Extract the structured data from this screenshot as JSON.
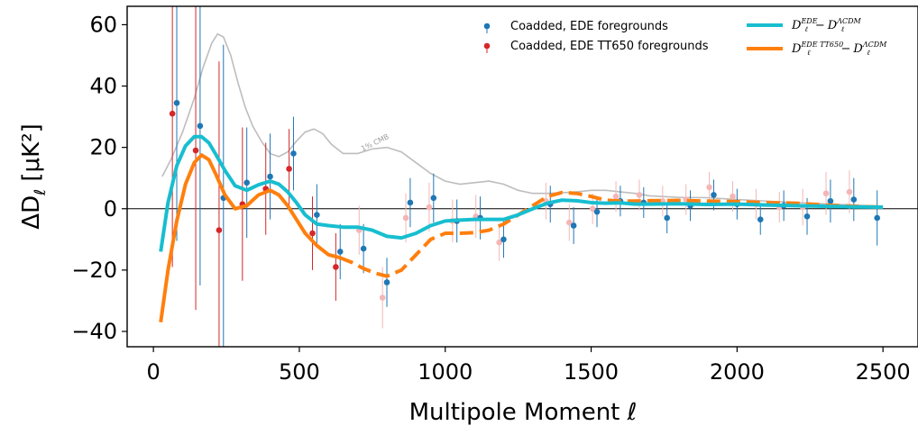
{
  "chart_data": {
    "type": "scatter",
    "xlabel": "Multipole Moment ℓ",
    "ylabel": "ΔD",
    "ylabel_sub": "ℓ",
    "ylabel_unit": " [μK²]",
    "xlim": [
      -90,
      2620
    ],
    "ylim": [
      -45,
      66
    ],
    "x_ticks": [
      0,
      500,
      1000,
      1500,
      2000,
      2500
    ],
    "y_ticks": [
      -40,
      -20,
      0,
      20,
      40,
      60
    ],
    "y_tick_labels": [
      "−40",
      "−20",
      "0",
      "20",
      "40",
      "60"
    ],
    "zero_line": true,
    "grid": false,
    "legend_position": "top-right",
    "colors": {
      "ede": "#1f77b4",
      "tt650": "#d62728",
      "tt650_faded": "#f4b6b6",
      "model_ede": "#17becf",
      "model_tt650": "#ff7f0e",
      "cmb": "#bdbdbd"
    },
    "series": [
      {
        "name": "Coadded, EDE foregrounds",
        "kind": "errorbar",
        "points": [
          {
            "x": 80,
            "y": 34.5,
            "err": 45
          },
          {
            "x": 160,
            "y": 27,
            "err": 52
          },
          {
            "x": 240,
            "y": 3.5,
            "err": 50
          },
          {
            "x": 320,
            "y": 8.5,
            "err": 18
          },
          {
            "x": 400,
            "y": 10.5,
            "err": 14
          },
          {
            "x": 480,
            "y": 18,
            "err": 12
          },
          {
            "x": 560,
            "y": -2,
            "err": 10
          },
          {
            "x": 640,
            "y": -14,
            "err": 9
          },
          {
            "x": 720,
            "y": -13,
            "err": 8
          },
          {
            "x": 800,
            "y": -24,
            "err": 8
          },
          {
            "x": 880,
            "y": 2,
            "err": 8
          },
          {
            "x": 960,
            "y": 3.5,
            "err": 8
          },
          {
            "x": 1040,
            "y": -4,
            "err": 7
          },
          {
            "x": 1120,
            "y": -3,
            "err": 7
          },
          {
            "x": 1200,
            "y": -10,
            "err": 6
          },
          {
            "x": 1360,
            "y": 1.5,
            "err": 6
          },
          {
            "x": 1440,
            "y": -5.5,
            "err": 6
          },
          {
            "x": 1520,
            "y": -1,
            "err": 5
          },
          {
            "x": 1600,
            "y": 2.5,
            "err": 5
          },
          {
            "x": 1680,
            "y": 2,
            "err": 5
          },
          {
            "x": 1760,
            "y": -3,
            "err": 5
          },
          {
            "x": 1840,
            "y": 1,
            "err": 5
          },
          {
            "x": 1920,
            "y": 4.5,
            "err": 5
          },
          {
            "x": 2000,
            "y": 1.5,
            "err": 5
          },
          {
            "x": 2080,
            "y": -3.5,
            "err": 5
          },
          {
            "x": 2160,
            "y": 1,
            "err": 5
          },
          {
            "x": 2240,
            "y": -2.5,
            "err": 6
          },
          {
            "x": 2320,
            "y": 2.5,
            "err": 7
          },
          {
            "x": 2400,
            "y": 3,
            "err": 7
          },
          {
            "x": 2480,
            "y": -3,
            "err": 9
          }
        ]
      },
      {
        "name": "Coadded, EDE TT650 foregrounds",
        "kind": "errorbar",
        "points": [
          {
            "x": 65,
            "y": 31,
            "err": 50
          },
          {
            "x": 145,
            "y": 19,
            "err": 52
          },
          {
            "x": 225,
            "y": -7,
            "err": 55
          },
          {
            "x": 305,
            "y": 1.5,
            "err": 25
          },
          {
            "x": 385,
            "y": 6.5,
            "err": 15
          },
          {
            "x": 465,
            "y": 13,
            "err": 13
          },
          {
            "x": 545,
            "y": -8,
            "err": 12
          },
          {
            "x": 625,
            "y": -19,
            "err": 11
          }
        ],
        "faded_points": [
          {
            "x": 705,
            "y": -7,
            "err": 8
          },
          {
            "x": 785,
            "y": -29,
            "err": 10
          },
          {
            "x": 865,
            "y": -3,
            "err": 8
          },
          {
            "x": 945,
            "y": 0.5,
            "err": 8
          },
          {
            "x": 1025,
            "y": -4,
            "err": 7
          },
          {
            "x": 1105,
            "y": -2.5,
            "err": 7
          },
          {
            "x": 1185,
            "y": -11,
            "err": 6
          },
          {
            "x": 1345,
            "y": 2.5,
            "err": 6
          },
          {
            "x": 1425,
            "y": -4.5,
            "err": 6
          },
          {
            "x": 1505,
            "y": 0,
            "err": 5
          },
          {
            "x": 1585,
            "y": 4,
            "err": 5
          },
          {
            "x": 1665,
            "y": 4.5,
            "err": 5
          },
          {
            "x": 1745,
            "y": 2.5,
            "err": 5
          },
          {
            "x": 1825,
            "y": 3,
            "err": 5
          },
          {
            "x": 1905,
            "y": 7,
            "err": 5
          },
          {
            "x": 1985,
            "y": 4,
            "err": 5
          },
          {
            "x": 2065,
            "y": 1.5,
            "err": 5
          },
          {
            "x": 2145,
            "y": 0.5,
            "err": 5
          },
          {
            "x": 2225,
            "y": 0.5,
            "err": 6
          },
          {
            "x": 2305,
            "y": 5,
            "err": 7
          },
          {
            "x": 2385,
            "y": 5.5,
            "err": 7
          }
        ]
      },
      {
        "name_parts": {
          "d1": "D",
          "sub1": "ℓ",
          "sup1": "EDE",
          "minus": "−",
          "d2": "D",
          "sub2": "ℓ",
          "sup2": "ΛCDM"
        },
        "kind": "line",
        "x": [
          25,
          50,
          80,
          110,
          140,
          165,
          190,
          215,
          245,
          280,
          320,
          360,
          400,
          430,
          460,
          490,
          520,
          560,
          600,
          650,
          700,
          750,
          800,
          850,
          900,
          950,
          1000,
          1050,
          1100,
          1150,
          1200,
          1250,
          1300,
          1350,
          1400,
          1450,
          1500,
          1550,
          1600,
          1650,
          1700,
          1800,
          1900,
          2000,
          2100,
          2200,
          2300,
          2400,
          2500
        ],
        "y": [
          -14,
          2,
          14,
          20.5,
          23.5,
          23.5,
          21.5,
          17.5,
          12.5,
          7.5,
          6,
          7.8,
          9,
          8,
          5.5,
          2,
          -2,
          -5,
          -5.5,
          -6,
          -6,
          -7,
          -9,
          -9.5,
          -8,
          -5.5,
          -4,
          -3.7,
          -3.5,
          -3.5,
          -3.5,
          -2,
          0,
          1.8,
          2.8,
          2.6,
          2,
          1.8,
          1.9,
          1.5,
          1.5,
          1.6,
          1.4,
          1.5,
          1.2,
          1,
          0.8,
          0.6,
          0.5
        ]
      },
      {
        "name_parts": {
          "d1": "D",
          "sub1": "ℓ",
          "sup1": "EDE TT650",
          "minus": "−",
          "d2": "D",
          "sub2": "ℓ",
          "sup2": "ΛCDM"
        },
        "kind": "line",
        "dashed_from_x": 640,
        "x": [
          25,
          50,
          80,
          110,
          140,
          165,
          190,
          215,
          245,
          280,
          320,
          360,
          400,
          430,
          460,
          490,
          520,
          560,
          600,
          640,
          680,
          720,
          760,
          800,
          850,
          900,
          950,
          1000,
          1050,
          1100,
          1150,
          1200,
          1250,
          1300,
          1350,
          1400,
          1450,
          1500,
          1550,
          1600,
          1650,
          1700,
          1800,
          1900,
          2000,
          2100,
          2200,
          2300,
          2400,
          2500
        ],
        "y": [
          -37,
          -20,
          -4,
          8,
          15,
          17.5,
          16,
          11,
          4.5,
          0,
          1,
          4.5,
          6,
          4.5,
          1,
          -3.5,
          -8,
          -12,
          -15,
          -16,
          -17.5,
          -19.5,
          -21,
          -22,
          -20,
          -15,
          -10,
          -8,
          -8,
          -7.8,
          -7,
          -5,
          -2,
          1,
          4,
          5.3,
          5,
          4,
          2.8,
          2.5,
          2.5,
          2.6,
          2.7,
          2.5,
          2.3,
          2,
          1.8,
          1.2,
          0.8,
          0.5
        ]
      },
      {
        "name": "1% CMB",
        "kind": "reference",
        "x": [
          30,
          60,
          100,
          140,
          170,
          200,
          220,
          240,
          265,
          290,
          315,
          340,
          370,
          400,
          430,
          460,
          490,
          520,
          550,
          580,
          610,
          650,
          700,
          750,
          800,
          850,
          900,
          950,
          1000,
          1050,
          1100,
          1150,
          1200,
          1250,
          1300,
          1350,
          1400,
          1450,
          1500,
          1550,
          1600,
          1650,
          1700,
          1800,
          1900,
          2000,
          2100,
          2200,
          2300,
          2400,
          2500
        ],
        "y": [
          10.5,
          16,
          25,
          36,
          46,
          54,
          57,
          56,
          50,
          41,
          33,
          27,
          22,
          18,
          17,
          18.5,
          22,
          25,
          26,
          24.5,
          21,
          18,
          18,
          19.5,
          20,
          18.5,
          15,
          11.5,
          9,
          8,
          8.5,
          9,
          8,
          6,
          5,
          5,
          5.2,
          5.5,
          6,
          6,
          5.5,
          5,
          4.2,
          3.7,
          3.6,
          3,
          2.5,
          2,
          1.6,
          1.2,
          0.8
        ]
      }
    ]
  }
}
